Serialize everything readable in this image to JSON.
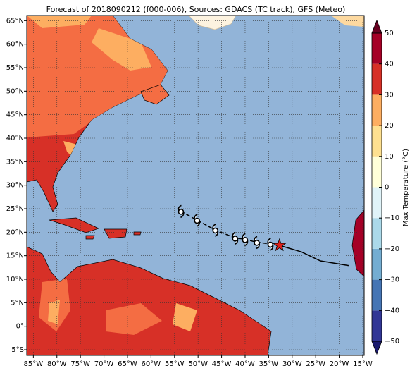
{
  "title": "Forecast of 2018090212 (f000-006), Sources: GDACS (TC track), GFS (Meteo)",
  "map": {
    "lonlim": [
      -86.4,
      -14.7
    ],
    "latlim": [
      -6.2,
      66.1
    ],
    "grid": true,
    "lon_ticks": [
      {
        "value": -85,
        "label": "85°W"
      },
      {
        "value": -80,
        "label": "80°W"
      },
      {
        "value": -75,
        "label": "75°W"
      },
      {
        "value": -70,
        "label": "70°W"
      },
      {
        "value": -65,
        "label": "65°W"
      },
      {
        "value": -60,
        "label": "60°W"
      },
      {
        "value": -55,
        "label": "55°W"
      },
      {
        "value": -50,
        "label": "50°W"
      },
      {
        "value": -45,
        "label": "45°W"
      },
      {
        "value": -40,
        "label": "40°W"
      },
      {
        "value": -35,
        "label": "35°W"
      },
      {
        "value": -30,
        "label": "30°W"
      },
      {
        "value": -25,
        "label": "25°W"
      },
      {
        "value": -20,
        "label": "20°W"
      },
      {
        "value": -15,
        "label": "15°W"
      }
    ],
    "lat_ticks": [
      {
        "value": 65,
        "label": "65°N"
      },
      {
        "value": 60,
        "label": "60°N"
      },
      {
        "value": 55,
        "label": "55°N"
      },
      {
        "value": 50,
        "label": "50°N"
      },
      {
        "value": 45,
        "label": "45°N"
      },
      {
        "value": 40,
        "label": "40°N"
      },
      {
        "value": 35,
        "label": "35°N"
      },
      {
        "value": 30,
        "label": "30°N"
      },
      {
        "value": 25,
        "label": "25°N"
      },
      {
        "value": 20,
        "label": "20°N"
      },
      {
        "value": 15,
        "label": "15°N"
      },
      {
        "value": 10,
        "label": "10°N"
      },
      {
        "value": 5,
        "label": "5°N"
      },
      {
        "value": 0,
        "label": "0°"
      },
      {
        "value": -5,
        "label": "5°S"
      }
    ]
  },
  "track": {
    "lon": [
      -53.7,
      -50.3,
      -46.4,
      -42.2,
      -40.1,
      -37.6,
      -34.7
    ],
    "lat": [
      24.5,
      22.6,
      20.5,
      18.8,
      18.5,
      17.9,
      17.5
    ]
  },
  "forecast_track": {
    "lon": [
      -32.7,
      -28.0,
      -24.0,
      -18.0
    ],
    "lat": [
      17.2,
      15.8,
      13.9,
      12.9
    ]
  },
  "current_position": {
    "lon": -32.7,
    "lat": 17.2
  },
  "colorbar": {
    "label": "Max Temperature (°C)",
    "lim": [
      -50,
      50
    ],
    "ticks": [
      {
        "value": -50,
        "label": "−50"
      },
      {
        "value": -40,
        "label": "−40"
      },
      {
        "value": -30,
        "label": "−30"
      },
      {
        "value": -20,
        "label": "−20"
      },
      {
        "value": -10,
        "label": "−10"
      },
      0,
      10,
      20,
      30,
      40,
      50
    ],
    "colors": [
      "#313695",
      "#4575b4",
      "#74add1",
      "#abd9e9",
      "#e0f3f8",
      "#ffffd9",
      "#fee090",
      "#fdae61",
      "#d73027",
      "#a50026"
    ],
    "under_color": "#1a1a6e",
    "over_color": "#67001f"
  }
}
